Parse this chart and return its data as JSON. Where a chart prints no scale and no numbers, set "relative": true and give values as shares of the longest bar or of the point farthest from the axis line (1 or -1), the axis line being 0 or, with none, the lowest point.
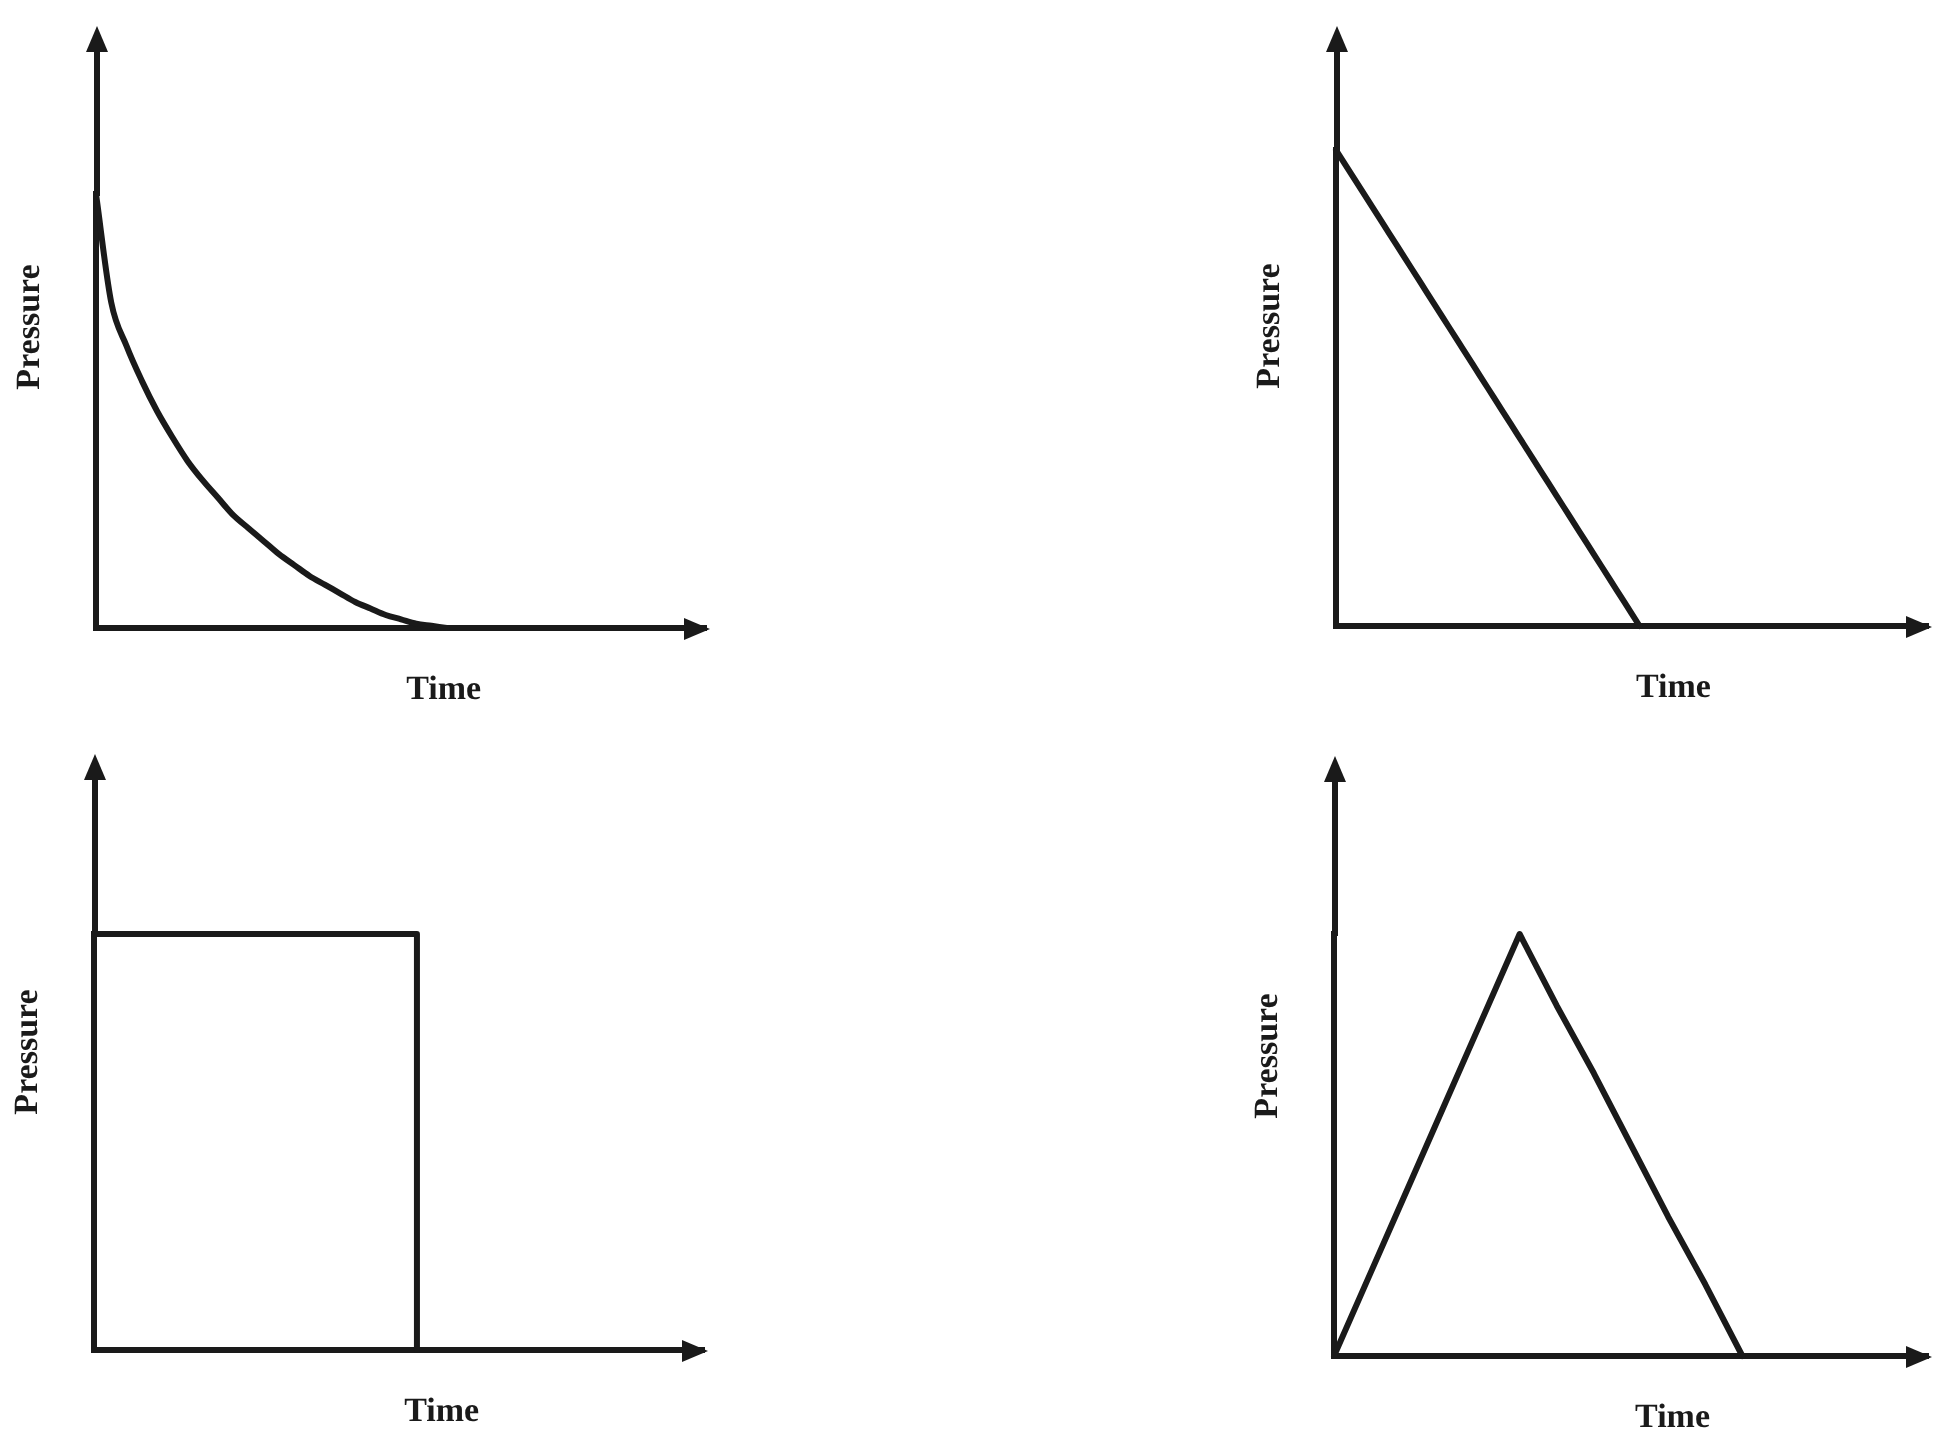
{
  "chart_data": [
    {
      "type": "line",
      "xlabel": "Time",
      "ylabel": "Pressure",
      "relative": true,
      "tick_labels": false,
      "marker": "none",
      "categories": [
        null,
        null,
        null,
        null,
        null,
        null,
        null,
        null,
        null,
        null,
        null,
        null,
        null,
        null,
        null,
        null,
        null,
        null,
        null,
        null,
        null,
        null,
        null,
        null,
        null,
        null,
        null,
        null,
        null,
        null,
        null,
        null,
        null,
        null,
        null,
        null,
        null,
        null,
        null,
        null,
        null
      ],
      "series": [
        {
          "color": "#1a1a1a",
          "values": [
            1,
            0.75,
            0.65,
            0.57,
            0.5,
            0.44,
            0.385,
            0.34,
            0.3,
            0.26,
            0.23,
            0.2,
            0.17,
            0.145,
            0.12,
            0.1,
            0.08,
            0.06,
            0.045,
            0.03,
            0.02,
            0.01,
            0.005,
            0,
            null,
            null,
            null,
            null,
            null,
            null,
            null,
            null,
            null,
            null,
            null,
            null,
            null,
            null,
            null,
            null,
            null
          ]
        }
      ]
    },
    {
      "type": "line",
      "xlabel": "Time",
      "ylabel": "Pressure",
      "relative": true,
      "tick_labels": false,
      "marker": "none",
      "categories": [
        null,
        null,
        null,
        null,
        null,
        null,
        null,
        null,
        null,
        null,
        null,
        null,
        null,
        null,
        null,
        null,
        null,
        null,
        null,
        null,
        null,
        null,
        null,
        null,
        null,
        null,
        null,
        null,
        null,
        null,
        null,
        null,
        null,
        null,
        null,
        null,
        null,
        null,
        null,
        null
      ],
      "series": [
        {
          "color": "#1a1a1a",
          "values": [
            1,
            0.95,
            0.9,
            0.85,
            0.8,
            0.75,
            0.7,
            0.65,
            0.6,
            0.55,
            0.5,
            0.45,
            0.4,
            0.35,
            0.3,
            0.25,
            0.2,
            0.15,
            0.1,
            0.05,
            0,
            null,
            null,
            null,
            null,
            null,
            null,
            null,
            null,
            null,
            null,
            null,
            null,
            null,
            null,
            null,
            null,
            null,
            null,
            null
          ]
        }
      ]
    },
    {
      "type": "step",
      "xlabel": "Time",
      "ylabel": "Pressure",
      "relative": true,
      "tick_labels": false,
      "marker": "none",
      "categories": [
        null,
        null,
        null,
        null,
        null,
        null,
        null,
        null,
        null,
        null,
        null,
        null,
        null,
        null,
        null,
        null,
        null,
        null
      ],
      "series": [
        {
          "color": "#1a1a1a",
          "values": [
            1,
            1,
            1,
            1,
            1,
            1,
            1,
            1,
            1,
            0,
            null,
            null,
            null,
            null,
            null,
            null,
            null,
            null
          ]
        }
      ]
    },
    {
      "type": "line",
      "xlabel": "Time",
      "ylabel": "Pressure",
      "relative": true,
      "tick_labels": false,
      "marker": "none",
      "categories": [
        null,
        null,
        null,
        null,
        null,
        null,
        null,
        null,
        null,
        null,
        null,
        null,
        null,
        null,
        null,
        null,
        null
      ],
      "series": [
        {
          "color": "#1a1a1a",
          "values": [
            0,
            0.2,
            0.4,
            0.6,
            0.8,
            1,
            0.83,
            0.67,
            0.5,
            0.33,
            0.17,
            0,
            null,
            null,
            null,
            null,
            null
          ]
        }
      ]
    }
  ]
}
